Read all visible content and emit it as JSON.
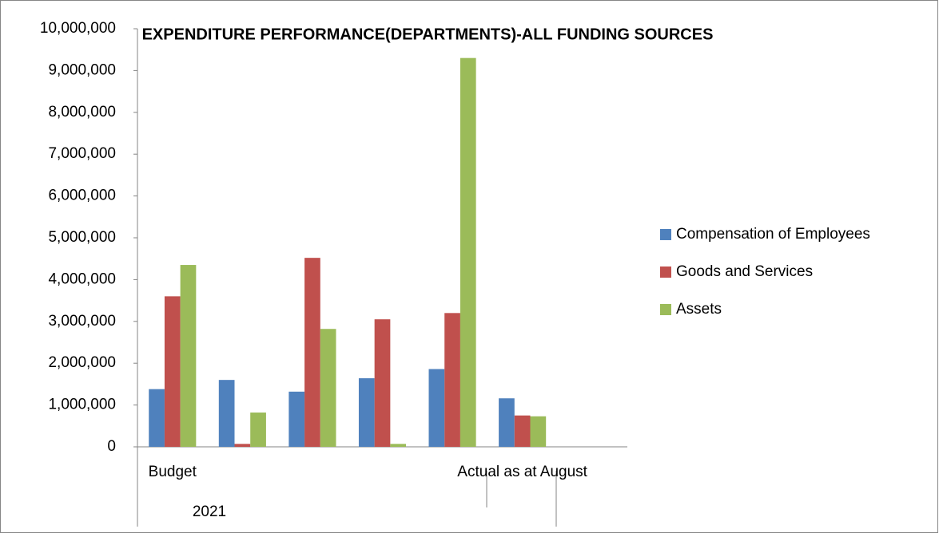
{
  "chart_data": {
    "type": "bar",
    "title": "EXPENDITURE PERFORMANCE(DEPARTMENTS)-ALL FUNDING SOURCES",
    "categories": [
      "Budget",
      null,
      null,
      null,
      null,
      "Actual as at August",
      null
    ],
    "x_group_label": "2021",
    "series": [
      {
        "name": "Compensation of Employees",
        "color": "#4f81bd",
        "values": [
          1380000,
          1600000,
          1320000,
          1640000,
          1860000,
          1160000,
          null
        ]
      },
      {
        "name": "Goods and Services",
        "color": "#c0504d",
        "values": [
          3600000,
          70000,
          4520000,
          3050000,
          3200000,
          750000,
          null
        ]
      },
      {
        "name": "Assets",
        "color": "#9bbb59",
        "values": [
          4350000,
          820000,
          2820000,
          70000,
          9300000,
          730000,
          null
        ]
      }
    ],
    "ylim": [
      0,
      10000000
    ],
    "yticks": [
      0,
      {
        "value": 1000000,
        "label": "1,000,000"
      },
      {
        "value": 2000000,
        "label": "2,000,000"
      },
      {
        "value": 3000000,
        "label": "3,000,000"
      },
      {
        "value": 4000000,
        "label": "4,000,000"
      },
      {
        "value": 5000000,
        "label": "5,000,000"
      },
      {
        "value": 6000000,
        "label": "6,000,000"
      },
      {
        "value": 7000000,
        "label": "7,000,000"
      },
      {
        "value": 8000000,
        "label": "8,000,000"
      },
      {
        "value": 9000000,
        "label": "9,000,000"
      },
      {
        "value": 10000000,
        "label": "10,000,000"
      }
    ],
    "grid": false,
    "legend": "right"
  }
}
